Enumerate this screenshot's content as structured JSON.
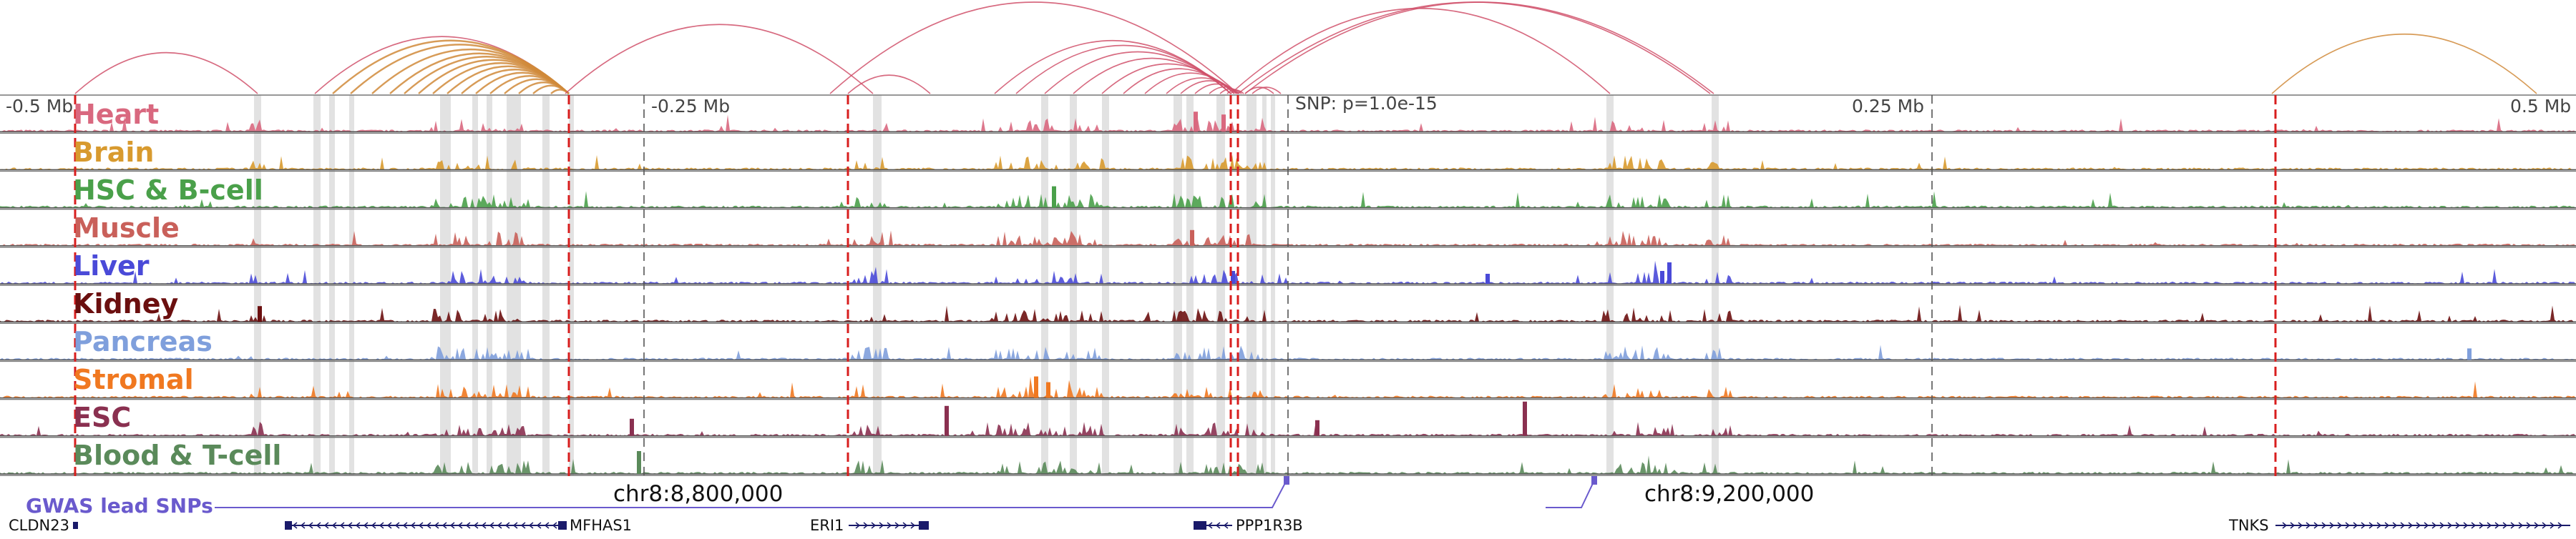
{
  "scale": {
    "left": "-0.5 Mb",
    "left_mid": "-0.25 Mb",
    "snp": "SNP: p=1.0e-15",
    "right_mid": "0.25 Mb",
    "right": "0.5 Mb"
  },
  "coords": {
    "left": "chr8:8,800,000",
    "right": "chr8:9,200,000"
  },
  "gwas_label": "GWAS lead SNPs",
  "tracks": [
    {
      "label": "Heart",
      "color": "#d9687f"
    },
    {
      "label": "Brain",
      "color": "#d89a2e"
    },
    {
      "label": "HSC & B-cell",
      "color": "#4aa04a"
    },
    {
      "label": "Muscle",
      "color": "#c9605a"
    },
    {
      "label": "Liver",
      "color": "#4a4ad8"
    },
    {
      "label": "Kidney",
      "color": "#6b0f0f"
    },
    {
      "label": "Pancreas",
      "color": "#7f9fdc"
    },
    {
      "label": "Stromal",
      "color": "#f07820"
    },
    {
      "label": "ESC",
      "color": "#8a3050"
    },
    {
      "label": "Blood & T-cell",
      "color": "#5a8a5a"
    }
  ],
  "genes": [
    {
      "name": "CLDN23"
    },
    {
      "name": "MFHAS1"
    },
    {
      "name": "ERI1"
    },
    {
      "name": "PPP1R3B"
    },
    {
      "name": "TNKS"
    }
  ],
  "colors": {
    "loop_heart": "#d0506a",
    "loop_brain": "#d08a3a",
    "gwas": "#6a5acd",
    "gene": "#1a1a6a",
    "highlight": "#d8d8d8",
    "dash": "#d81e1e"
  }
}
